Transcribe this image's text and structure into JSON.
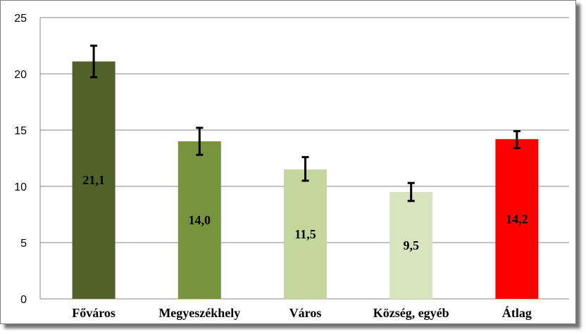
{
  "chart_data": {
    "type": "bar",
    "categories": [
      "Főváros",
      "Megyeszékhely",
      "Város",
      "Község, egyéb",
      "Átlag"
    ],
    "values": [
      21.1,
      14.0,
      11.5,
      9.5,
      14.2
    ],
    "value_labels": [
      "21,1",
      "14,0",
      "11,5",
      "9,5",
      "14,2"
    ],
    "error_low": [
      19.7,
      12.8,
      10.5,
      8.7,
      13.4
    ],
    "error_high": [
      22.5,
      15.2,
      12.6,
      10.3,
      14.9
    ],
    "colors": [
      "#4f6228",
      "#77933c",
      "#c3d69b",
      "#d7e4bd",
      "#ff0000"
    ],
    "yticks": [
      "0",
      "5",
      "10",
      "15",
      "20",
      "25"
    ],
    "ylim": [
      0,
      25
    ],
    "grid": true,
    "legend": "none"
  }
}
